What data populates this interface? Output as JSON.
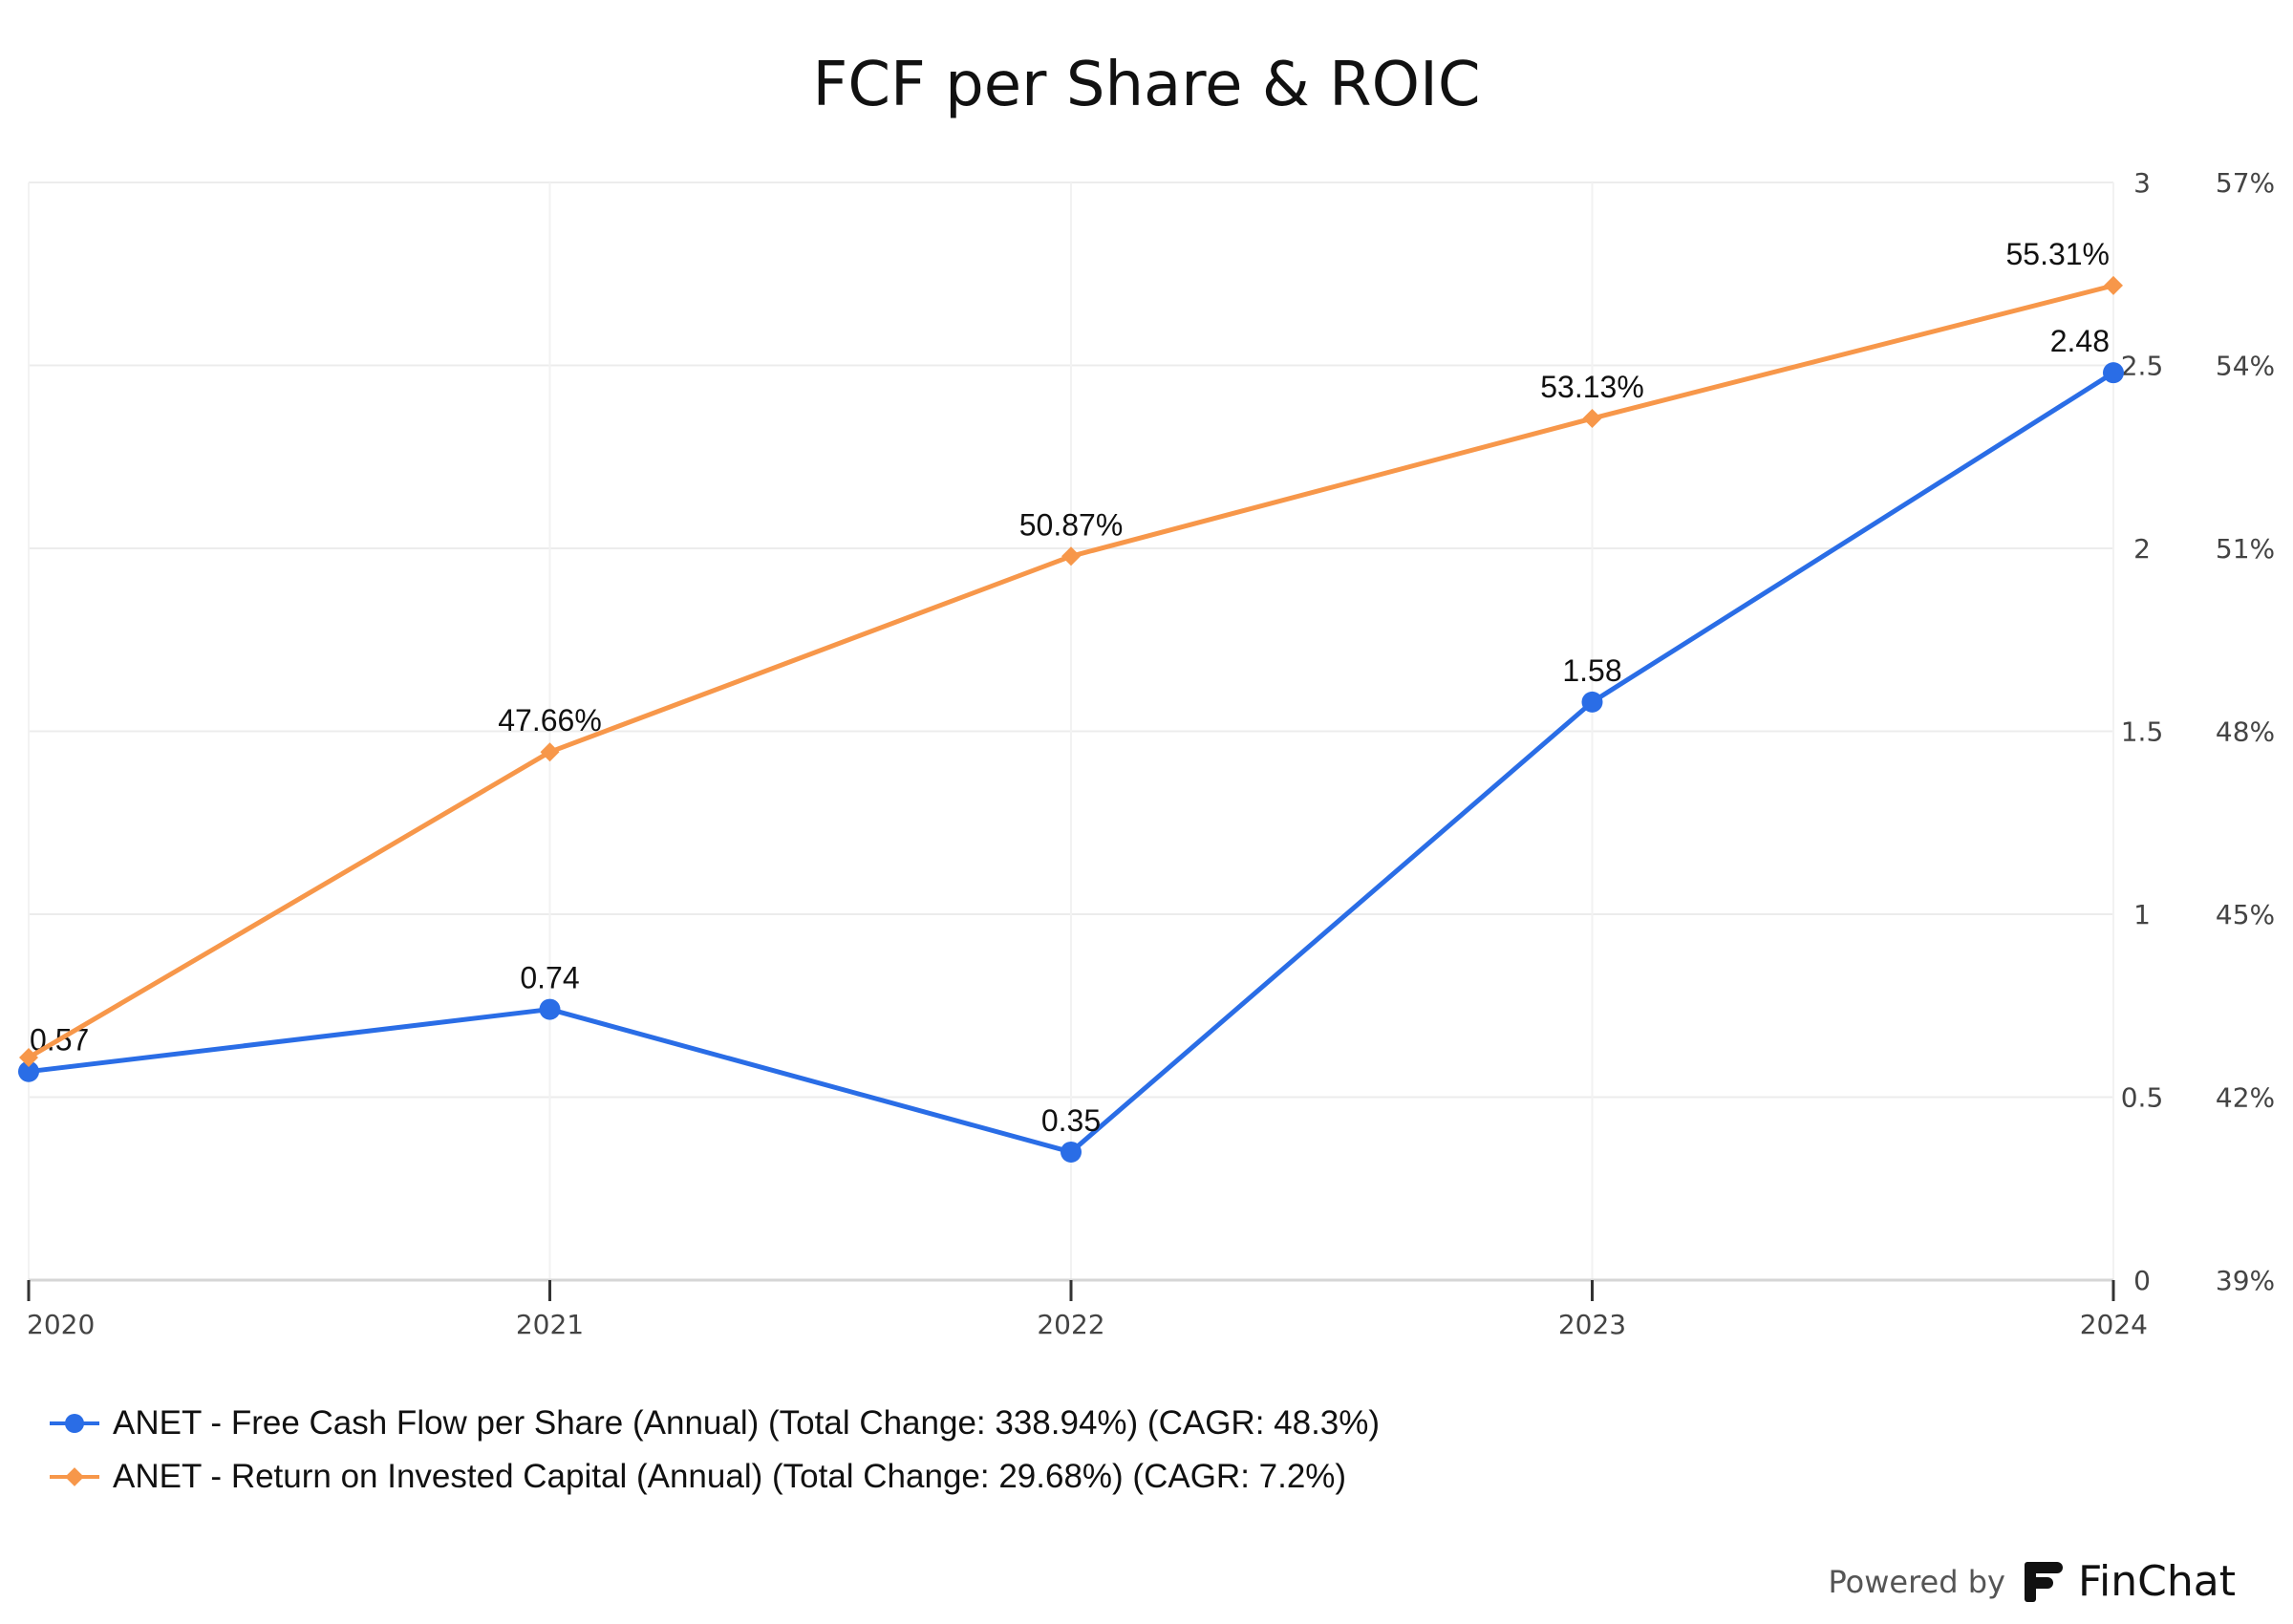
{
  "title": "FCF per Share & ROIC",
  "chart_data": {
    "type": "line",
    "title": "FCF per Share & ROIC",
    "categories": [
      "2020",
      "2021",
      "2022",
      "2023",
      "2024"
    ],
    "y_axis_fcf": {
      "ticks": [
        "0",
        "0.5",
        "1",
        "1.5",
        "2",
        "2.5",
        "3"
      ],
      "ylim": [
        0,
        3
      ]
    },
    "y_axis_roic": {
      "ticks": [
        "39%",
        "42%",
        "45%",
        "48%",
        "51%",
        "54%",
        "57%"
      ],
      "ylim": [
        39,
        57
      ]
    },
    "grid": true,
    "legend_position": "bottom-left",
    "series": [
      {
        "name": "ANET - Free Cash Flow per Share (Annual) (Total Change: 338.94%) (CAGR: 48.3%)",
        "axis": "fcf",
        "color": "#2a6de6",
        "marker": "circle",
        "values": [
          0.57,
          0.74,
          0.35,
          1.58,
          2.48
        ],
        "labels": [
          "0.57",
          "0.74",
          "0.35",
          "1.58",
          "2.48"
        ]
      },
      {
        "name": "ANET - Return on Invested Capital (Annual) (Total Change: 29.68%) (CAGR: 7.2%)",
        "axis": "roic",
        "color": "#f7974a",
        "marker": "diamond",
        "values": [
          42.65,
          47.66,
          50.87,
          53.13,
          55.31
        ],
        "labels": [
          "",
          "47.66%",
          "50.87%",
          "53.13%",
          "55.31%"
        ]
      }
    ]
  },
  "footer": {
    "powered_by": "Powered by",
    "brand": "FinChat"
  }
}
